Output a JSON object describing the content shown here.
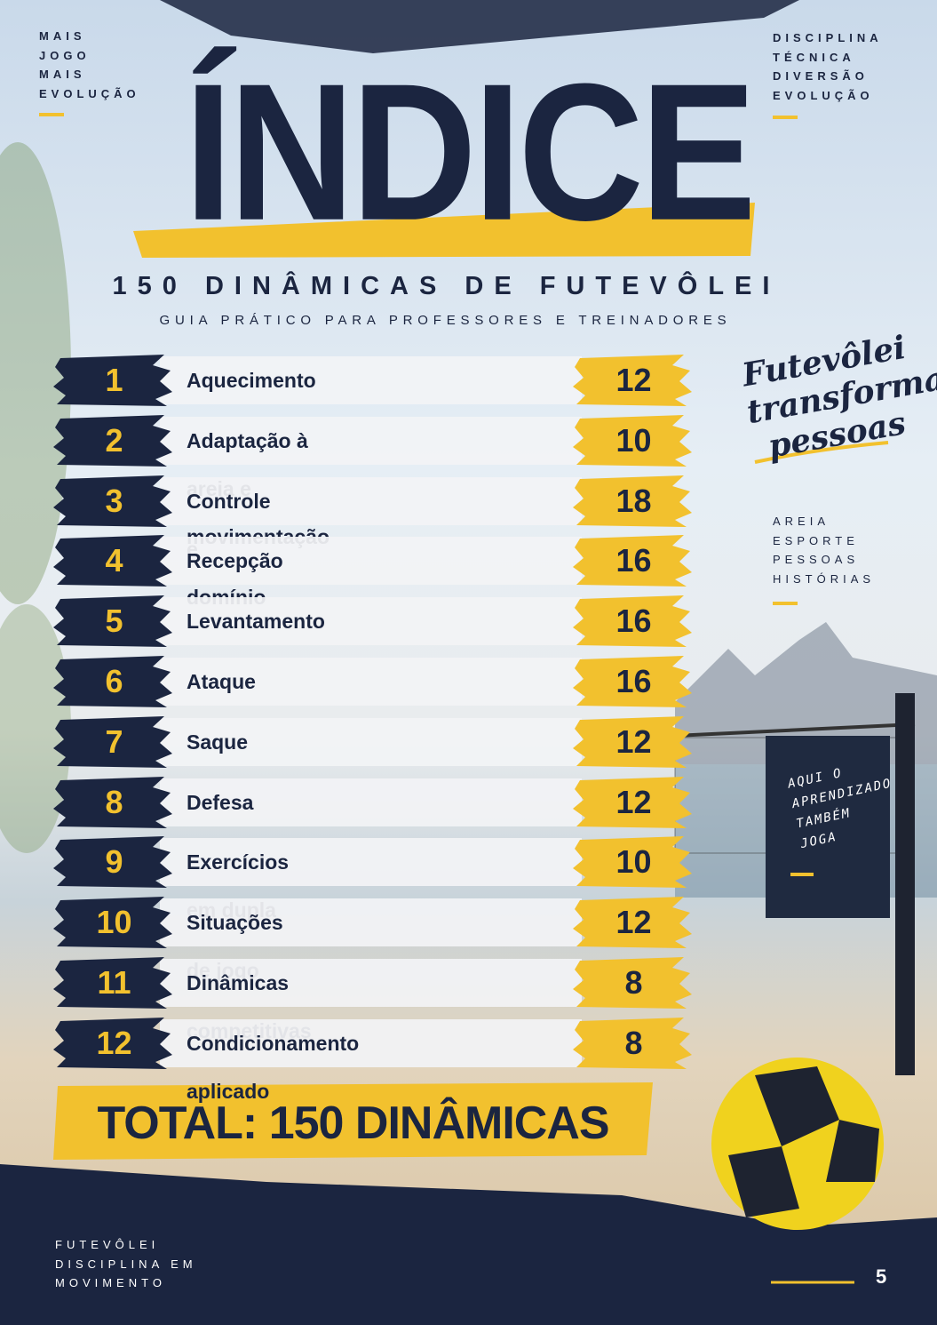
{
  "corner_top_left": [
    "MAIS",
    "JOGO",
    "MAIS",
    "EVOLUÇÃO"
  ],
  "corner_top_right": [
    "DISCIPLINA",
    "TÉCNICA",
    "DIVERSÃO",
    "EVOLUÇÃO"
  ],
  "title": "ÍNDICE",
  "subtitle": "150 DINÂMICAS DE FUTEVÔLEI",
  "tagline": "GUIA PRÁTICO PARA PROFESSORES E TREINADORES",
  "entries": [
    {
      "number": "1",
      "label": "Aquecimento",
      "count": "12"
    },
    {
      "number": "2",
      "label": "Adaptação à areia e movimentação",
      "count": "10"
    },
    {
      "number": "3",
      "label": "Controle e domínio",
      "count": "18"
    },
    {
      "number": "4",
      "label": "Recepção",
      "count": "16"
    },
    {
      "number": "5",
      "label": "Levantamento",
      "count": "16"
    },
    {
      "number": "6",
      "label": "Ataque",
      "count": "16"
    },
    {
      "number": "7",
      "label": "Saque",
      "count": "12"
    },
    {
      "number": "8",
      "label": "Defesa",
      "count": "12"
    },
    {
      "number": "9",
      "label": "Exercícios em dupla",
      "count": "10"
    },
    {
      "number": "10",
      "label": "Situações de jogo",
      "count": "12"
    },
    {
      "number": "11",
      "label": "Dinâmicas competitivas",
      "count": "8"
    },
    {
      "number": "12",
      "label": "Condicionamento aplicado",
      "count": "8"
    }
  ],
  "total": "TOTAL: 150 DINÂMICAS",
  "script_quote": [
    "Futevôlei",
    "transforma",
    "pessoas"
  ],
  "side_words": [
    "AREIA",
    "ESPORTE",
    "PESSOAS",
    "HISTÓRIAS"
  ],
  "sign": [
    "AQUI O",
    "APRENDIZADO",
    "TAMBÉM",
    "JOGA"
  ],
  "footer": [
    "FUTEVÔLEI",
    "DISCIPLINA EM",
    "MOVIMENTO"
  ],
  "page_number": "5"
}
